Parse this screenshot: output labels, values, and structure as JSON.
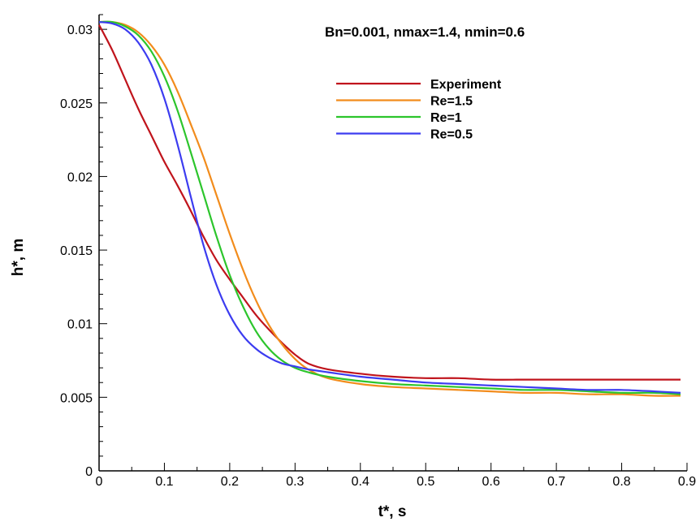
{
  "chart_data": {
    "type": "line",
    "title": "",
    "annotation": "Bn=0.001, nmax=1.4, nmin=0.6",
    "xlabel": "t*, s",
    "ylabel": "h*, m",
    "xlim": [
      0,
      0.9
    ],
    "ylim": [
      0,
      0.031
    ],
    "x_ticks": [
      0,
      0.1,
      0.2,
      0.3,
      0.4,
      0.5,
      0.6,
      0.7,
      0.8,
      0.9
    ],
    "x_tick_labels": [
      "0",
      "0.1",
      "0.2",
      "0.3",
      "0.4",
      "0.5",
      "0.6",
      "0.7",
      "0.8",
      "0.9"
    ],
    "y_ticks": [
      0,
      0.005,
      0.01,
      0.015,
      0.02,
      0.025,
      0.03
    ],
    "y_tick_labels": [
      "0",
      "0.005",
      "0.01",
      "0.015",
      "0.02",
      "0.025",
      "0.03"
    ],
    "grid": false,
    "legend_position": "top-right",
    "series": [
      {
        "name": "Experiment",
        "color": "#c0141c",
        "x": [
          0,
          0.02,
          0.04,
          0.06,
          0.08,
          0.1,
          0.12,
          0.14,
          0.16,
          0.18,
          0.2,
          0.22,
          0.24,
          0.26,
          0.28,
          0.3,
          0.32,
          0.35,
          0.4,
          0.45,
          0.5,
          0.55,
          0.6,
          0.65,
          0.7,
          0.75,
          0.8,
          0.85,
          0.89
        ],
        "y": [
          0.0303,
          0.0286,
          0.0266,
          0.0246,
          0.0228,
          0.021,
          0.0194,
          0.0177,
          0.0159,
          0.0143,
          0.013,
          0.0118,
          0.0106,
          0.0096,
          0.0087,
          0.0079,
          0.0073,
          0.0069,
          0.0066,
          0.0064,
          0.0063,
          0.0063,
          0.0062,
          0.0062,
          0.0062,
          0.0062,
          0.0062,
          0.0062,
          0.0062
        ]
      },
      {
        "name": "Re=1.5",
        "color": "#f28c1c",
        "x": [
          0,
          0.02,
          0.04,
          0.06,
          0.08,
          0.1,
          0.12,
          0.14,
          0.16,
          0.18,
          0.2,
          0.22,
          0.24,
          0.26,
          0.28,
          0.3,
          0.32,
          0.35,
          0.4,
          0.45,
          0.5,
          0.55,
          0.6,
          0.65,
          0.7,
          0.75,
          0.8,
          0.85,
          0.89
        ],
        "y": [
          0.0305,
          0.0305,
          0.0303,
          0.0298,
          0.0289,
          0.0276,
          0.0258,
          0.0236,
          0.0213,
          0.0187,
          0.0161,
          0.0137,
          0.0116,
          0.0099,
          0.0086,
          0.0076,
          0.0069,
          0.0063,
          0.0059,
          0.0057,
          0.0056,
          0.0055,
          0.0054,
          0.0053,
          0.0053,
          0.0052,
          0.0052,
          0.0051,
          0.0051
        ]
      },
      {
        "name": "Re=1",
        "color": "#2cc52c",
        "x": [
          0,
          0.02,
          0.04,
          0.06,
          0.08,
          0.1,
          0.12,
          0.14,
          0.16,
          0.18,
          0.2,
          0.22,
          0.24,
          0.26,
          0.28,
          0.3,
          0.32,
          0.35,
          0.4,
          0.45,
          0.5,
          0.55,
          0.6,
          0.65,
          0.7,
          0.75,
          0.8,
          0.85,
          0.89
        ],
        "y": [
          0.0305,
          0.0305,
          0.0302,
          0.0296,
          0.0285,
          0.0268,
          0.0245,
          0.0217,
          0.0188,
          0.0159,
          0.0133,
          0.0112,
          0.0095,
          0.0083,
          0.0075,
          0.007,
          0.0067,
          0.0064,
          0.0061,
          0.0059,
          0.0058,
          0.0057,
          0.0056,
          0.0055,
          0.0055,
          0.0054,
          0.0053,
          0.0053,
          0.0052
        ]
      },
      {
        "name": "Re=0.5",
        "color": "#3c3cf0",
        "x": [
          0,
          0.02,
          0.04,
          0.06,
          0.08,
          0.1,
          0.12,
          0.14,
          0.16,
          0.18,
          0.2,
          0.22,
          0.24,
          0.26,
          0.28,
          0.3,
          0.32,
          0.35,
          0.4,
          0.45,
          0.5,
          0.55,
          0.6,
          0.65,
          0.7,
          0.75,
          0.8,
          0.85,
          0.89
        ],
        "y": [
          0.0305,
          0.0304,
          0.03,
          0.0291,
          0.0276,
          0.0253,
          0.0222,
          0.0187,
          0.0153,
          0.0126,
          0.0106,
          0.0092,
          0.0083,
          0.0077,
          0.0073,
          0.0071,
          0.0069,
          0.0067,
          0.0064,
          0.0062,
          0.006,
          0.0059,
          0.0058,
          0.0057,
          0.0056,
          0.0055,
          0.0055,
          0.0054,
          0.0053
        ]
      }
    ]
  }
}
